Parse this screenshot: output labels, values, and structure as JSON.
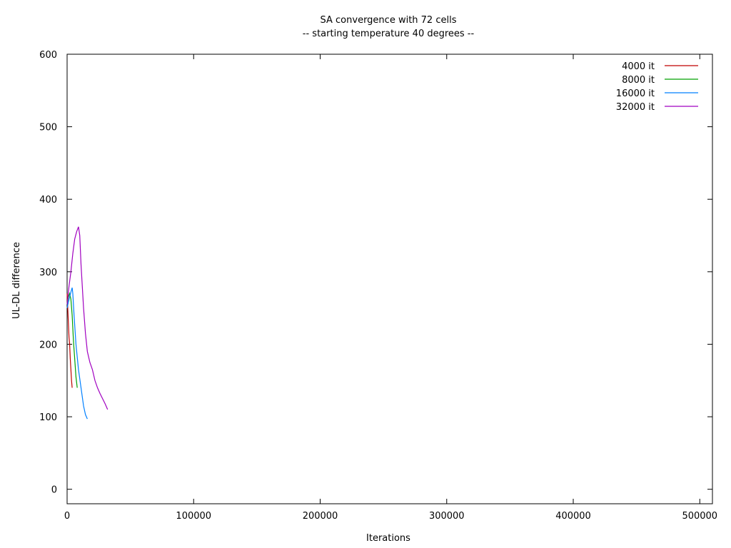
{
  "chart_data": {
    "type": "line",
    "title": "SA convergence with 72 cells",
    "subtitle": "-- starting temperature 40 degrees --",
    "xlabel": "Iterations",
    "ylabel": "UL-DL difference",
    "xlim": [
      0,
      510000
    ],
    "ylim": [
      -20,
      600
    ],
    "xticks": [
      {
        "value": 0,
        "label": "0"
      },
      {
        "value": 100000,
        "label": "100000"
      },
      {
        "value": 200000,
        "label": "200000"
      },
      {
        "value": 300000,
        "label": "300000"
      },
      {
        "value": 400000,
        "label": "400000"
      },
      {
        "value": 500000,
        "label": "500000"
      }
    ],
    "yticks": [
      {
        "value": 0,
        "label": "0"
      },
      {
        "value": 100,
        "label": "100"
      },
      {
        "value": 200,
        "label": "200"
      },
      {
        "value": 300,
        "label": "300"
      },
      {
        "value": 400,
        "label": "400"
      },
      {
        "value": 500,
        "label": "500"
      },
      {
        "value": 600,
        "label": "600"
      }
    ],
    "grid": false,
    "legend": "top-right",
    "series": [
      {
        "name": "4000 it",
        "color": "#c00000",
        "points": [
          [
            0,
            270
          ],
          [
            500,
            250
          ],
          [
            1000,
            230
          ],
          [
            1500,
            210
          ],
          [
            2000,
            200
          ],
          [
            2500,
            180
          ],
          [
            3000,
            165
          ],
          [
            3500,
            150
          ],
          [
            4000,
            140
          ]
        ]
      },
      {
        "name": "8000 it",
        "color": "#00a000",
        "points": [
          [
            0,
            255
          ],
          [
            1000,
            265
          ],
          [
            2000,
            270
          ],
          [
            3000,
            262
          ],
          [
            4000,
            240
          ],
          [
            5000,
            205
          ],
          [
            6000,
            180
          ],
          [
            7000,
            155
          ],
          [
            8000,
            140
          ]
        ]
      },
      {
        "name": "16000 it",
        "color": "#0080ff",
        "points": [
          [
            0,
            250
          ],
          [
            1000,
            258
          ],
          [
            2000,
            265
          ],
          [
            3000,
            272
          ],
          [
            4000,
            278
          ],
          [
            4500,
            270
          ],
          [
            5500,
            240
          ],
          [
            7000,
            200
          ],
          [
            9000,
            165
          ],
          [
            11000,
            140
          ],
          [
            13000,
            115
          ],
          [
            14500,
            103
          ],
          [
            16000,
            97
          ]
        ]
      },
      {
        "name": "32000 it",
        "color": "#a000c0",
        "points": [
          [
            0,
            255
          ],
          [
            1500,
            280
          ],
          [
            3000,
            300
          ],
          [
            4500,
            325
          ],
          [
            6000,
            345
          ],
          [
            7500,
            355
          ],
          [
            9000,
            362
          ],
          [
            10000,
            350
          ],
          [
            11000,
            310
          ],
          [
            12000,
            280
          ],
          [
            13000,
            250
          ],
          [
            14500,
            215
          ],
          [
            16000,
            190
          ],
          [
            18000,
            175
          ],
          [
            20000,
            165
          ],
          [
            22000,
            150
          ],
          [
            24000,
            140
          ],
          [
            26000,
            132
          ],
          [
            28000,
            125
          ],
          [
            30000,
            118
          ],
          [
            32000,
            110
          ]
        ]
      }
    ]
  }
}
